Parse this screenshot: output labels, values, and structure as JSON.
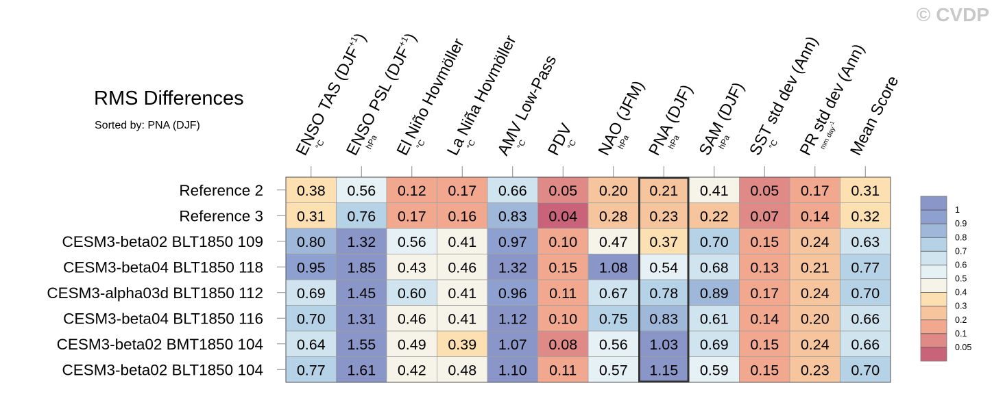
{
  "watermark": "© CVDP",
  "chart_data": {
    "type": "heatmap",
    "title": "RMS Differences",
    "subtitle": "Sorted by: PNA (DJF)",
    "columns": [
      {
        "name": "ENSO TAS (DJF+1)",
        "main": "ENSO TAS (DJF",
        "sup": "+1",
        "close": ")",
        "unit": "°C"
      },
      {
        "name": "ENSO PSL (DJF+1)",
        "main": "ENSO PSL (DJF",
        "sup": "+1",
        "close": ")",
        "unit": "hPa"
      },
      {
        "name": "El Niño Hovmöller",
        "main": "El Niño Hovmöller",
        "unit": "°C"
      },
      {
        "name": "La Niña Hovmöller",
        "main": "La Niña Hovmöller",
        "unit": "°C"
      },
      {
        "name": "AMV Low-Pass",
        "main": "AMV Low-Pass",
        "unit": "°C"
      },
      {
        "name": "PDV",
        "main": "PDV",
        "unit": "°C"
      },
      {
        "name": "NAO (JFM)",
        "main": "NAO (JFM)",
        "unit": "hPa"
      },
      {
        "name": "PNA (DJF)",
        "main": "PNA (DJF)",
        "unit": "hPa"
      },
      {
        "name": "SAM (DJF)",
        "main": "SAM (DJF)",
        "unit": "hPa"
      },
      {
        "name": "SST std dev (Ann)",
        "main": "SST std dev (Ann)",
        "unit": "°C"
      },
      {
        "name": "PR std dev (Ann)",
        "main": "PR std dev (Ann)",
        "unit": "mm day-1",
        "unit_main": "mm day",
        "unit_sup": "-1"
      },
      {
        "name": "Mean Score",
        "main": "Mean Score",
        "unit": ""
      }
    ],
    "rows": [
      "Reference 2",
      "Reference 3",
      "CESM3-beta02 BLT1850 109",
      "CESM3-beta04 BLT1850 118",
      "CESM3-alpha03d BLT1850 112",
      "CESM3-beta04 BLT1850 116",
      "CESM3-beta02 BMT1850 104",
      "CESM3-beta02 BLT1850 104"
    ],
    "values": [
      [
        0.38,
        0.56,
        0.12,
        0.17,
        0.66,
        0.05,
        0.2,
        0.21,
        0.41,
        0.05,
        0.17,
        0.31
      ],
      [
        0.31,
        0.76,
        0.17,
        0.16,
        0.83,
        0.04,
        0.28,
        0.23,
        0.22,
        0.07,
        0.14,
        0.32
      ],
      [
        0.8,
        1.32,
        0.56,
        0.41,
        0.97,
        0.1,
        0.47,
        0.37,
        0.7,
        0.15,
        0.24,
        0.63
      ],
      [
        0.95,
        1.85,
        0.43,
        0.46,
        1.32,
        0.15,
        1.08,
        0.54,
        0.68,
        0.13,
        0.21,
        0.77
      ],
      [
        0.69,
        1.45,
        0.6,
        0.41,
        0.96,
        0.11,
        0.67,
        0.78,
        0.89,
        0.17,
        0.24,
        0.7
      ],
      [
        0.7,
        1.31,
        0.46,
        0.41,
        1.12,
        0.1,
        0.75,
        0.83,
        0.61,
        0.14,
        0.2,
        0.66
      ],
      [
        0.64,
        1.55,
        0.49,
        0.39,
        1.07,
        0.08,
        0.56,
        1.03,
        0.69,
        0.15,
        0.24,
        0.66
      ],
      [
        0.77,
        1.61,
        0.42,
        0.48,
        1.1,
        0.11,
        0.57,
        1.15,
        0.59,
        0.15,
        0.23,
        0.7
      ]
    ],
    "highlight_column": "PNA (DJF)",
    "colorbar": {
      "levels": [
        0.05,
        0.1,
        0.2,
        0.3,
        0.4,
        0.5,
        0.6,
        0.7,
        0.8,
        0.9,
        1
      ],
      "labels": [
        "0.05",
        "0.1",
        "0.2",
        "0.3",
        "0.4",
        "0.5",
        "0.6",
        "0.7",
        "0.8",
        "0.9",
        "1"
      ],
      "colors": [
        "#c9637a",
        "#e08a87",
        "#f1a88f",
        "#f7c59d",
        "#fde0b2",
        "#f6f4e8",
        "#e6f1f5",
        "#cfe4ef",
        "#b5d2e6",
        "#9fb8da",
        "#8da0cf",
        "#8a95c8"
      ]
    }
  }
}
